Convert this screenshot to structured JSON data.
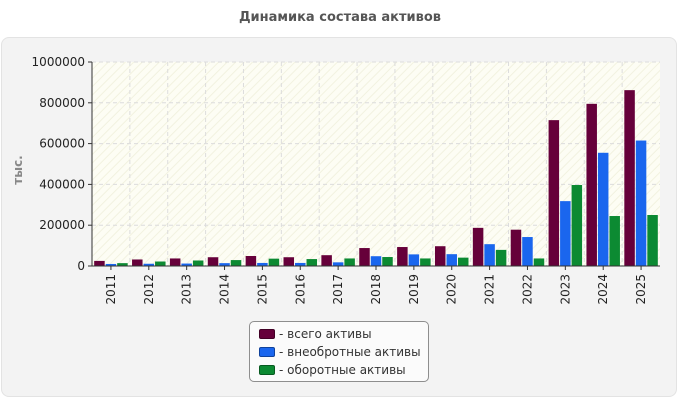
{
  "chart_data": {
    "type": "bar",
    "title": "Динамика состава активов",
    "ylabel": "тыс.",
    "xlabel": "",
    "categories": [
      "2011",
      "2012",
      "2013",
      "2014",
      "2015",
      "2016",
      "2017",
      "2018",
      "2019",
      "2020",
      "2021",
      "2022",
      "2023",
      "2024",
      "2025"
    ],
    "series": [
      {
        "name": "- всего активы",
        "color": "#66003a",
        "values": [
          25000,
          32000,
          37000,
          43000,
          49000,
          43000,
          53000,
          88000,
          93000,
          97000,
          187000,
          178000,
          715000,
          795000,
          862000
        ]
      },
      {
        "name": "- внеобротные активы",
        "color": "#1a66ee",
        "values": [
          10000,
          11000,
          12000,
          14000,
          15000,
          15000,
          18000,
          48000,
          57000,
          58000,
          107000,
          142000,
          318000,
          555000,
          615000
        ]
      },
      {
        "name": "- оборотные активы",
        "color": "#0c8a32",
        "values": [
          14000,
          22000,
          27000,
          29000,
          36000,
          34000,
          37000,
          44000,
          37000,
          41000,
          79000,
          37000,
          397000,
          245000,
          250000
        ]
      }
    ],
    "ylim": [
      0,
      1000000
    ],
    "yticks": [
      "0",
      "200000",
      "400000",
      "600000",
      "800000",
      "1000000"
    ],
    "grid": true,
    "legend_position": "bottom"
  }
}
